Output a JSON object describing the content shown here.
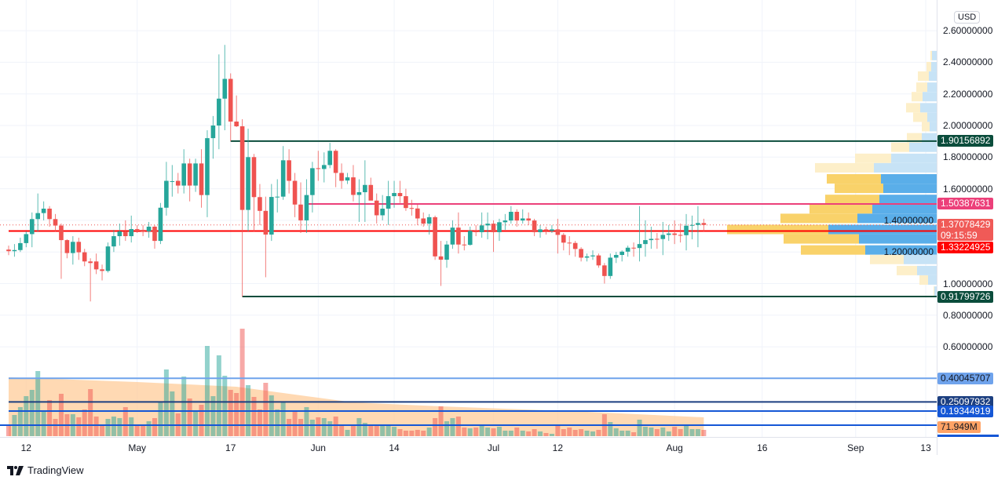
{
  "currency_button": "USD",
  "logo_text": "TradingView",
  "colors": {
    "up": "#26a69a",
    "down": "#ef5350",
    "grid": "#f0f3fa",
    "resistance": "#0b4d3c",
    "pink": "#e91e63",
    "support_red": "#ff0000",
    "vol_ma": "#ffcc99",
    "profile_up": "#5aaee9",
    "profile_down": "#f9d26a",
    "profile_up_light": "#c7e3f6",
    "profile_down_light": "#fdefc9"
  },
  "chart_data": {
    "type": "candlestick",
    "ylim": [
      0.55,
      2.68
    ],
    "grid": true,
    "price_ticks": [
      "2.60000000",
      "2.40000000",
      "2.20000000",
      "2.00000000",
      "1.80000000",
      "1.60000000",
      "1.40000000",
      "1.20000000",
      "1.00000000",
      "0.80000000",
      "0.60000000"
    ],
    "time_ticks": [
      {
        "label": "12",
        "date": "Apr 12"
      },
      {
        "label": "May",
        "date": "May 1"
      },
      {
        "label": "17",
        "date": "May 17"
      },
      {
        "label": "Jun",
        "date": "Jun 1"
      },
      {
        "label": "14",
        "date": "Jun 14"
      },
      {
        "label": "Jul",
        "date": "Jul 1"
      },
      {
        "label": "12",
        "date": "Jul 12"
      },
      {
        "label": "Aug",
        "date": "Aug 1"
      },
      {
        "label": "16",
        "date": "Aug 16"
      },
      {
        "label": "Sep",
        "date": "Sep 1"
      },
      {
        "label": "13",
        "date": "Sep 13"
      }
    ],
    "candle_columns": [
      "date",
      "open",
      "high",
      "low",
      "close",
      "volume_M"
    ],
    "candles": [
      [
        "Apr 9",
        1.215,
        1.24,
        1.18,
        1.205,
        117
      ],
      [
        "Apr 10",
        1.205,
        1.25,
        1.17,
        1.212,
        243
      ],
      [
        "Apr 11",
        1.212,
        1.29,
        1.2,
        1.256,
        333
      ],
      [
        "Apr 12",
        1.256,
        1.33,
        1.23,
        1.313,
        459
      ],
      [
        "Apr 13",
        1.313,
        1.45,
        1.23,
        1.408,
        531
      ],
      [
        "Apr 14",
        1.408,
        1.57,
        1.33,
        1.446,
        747
      ],
      [
        "Apr 15",
        1.446,
        1.52,
        1.4,
        1.474,
        288
      ],
      [
        "Apr 16",
        1.474,
        1.49,
        1.36,
        1.408,
        414
      ],
      [
        "Apr 17",
        1.408,
        1.44,
        1.33,
        1.367,
        198
      ],
      [
        "Apr 18",
        1.367,
        1.38,
        1.03,
        1.275,
        486
      ],
      [
        "Apr 19",
        1.275,
        1.28,
        1.16,
        1.193,
        252
      ],
      [
        "Apr 20",
        1.193,
        1.3,
        1.12,
        1.264,
        252
      ],
      [
        "Apr 21",
        1.264,
        1.29,
        1.15,
        1.198,
        216
      ],
      [
        "Apr 22",
        1.198,
        1.22,
        1.11,
        1.14,
        306
      ],
      [
        "Apr 23",
        1.14,
        1.16,
        0.887,
        1.13,
        540
      ],
      [
        "Apr 24",
        1.14,
        1.19,
        1.06,
        1.09,
        225
      ],
      [
        "Apr 25",
        1.09,
        1.12,
        1.02,
        1.08,
        126
      ],
      [
        "Apr 26",
        1.08,
        1.26,
        1.07,
        1.235,
        198
      ],
      [
        "Apr 27",
        1.235,
        1.34,
        1.2,
        1.3,
        225
      ],
      [
        "Apr 28",
        1.3,
        1.38,
        1.24,
        1.33,
        207
      ],
      [
        "Apr 29",
        1.33,
        1.4,
        1.27,
        1.3,
        333
      ],
      [
        "Apr 30",
        1.3,
        1.43,
        1.26,
        1.345,
        216
      ],
      [
        "May 1",
        1.345,
        1.37,
        1.32,
        1.34,
        126
      ],
      [
        "May 2",
        1.34,
        1.37,
        1.3,
        1.33,
        117
      ],
      [
        "May 3",
        1.33,
        1.39,
        1.29,
        1.36,
        171
      ],
      [
        "May 4",
        1.36,
        1.37,
        1.22,
        1.27,
        207
      ],
      [
        "May 5",
        1.27,
        1.51,
        1.25,
        1.48,
        387
      ],
      [
        "May 6",
        1.48,
        1.77,
        1.43,
        1.65,
        765
      ],
      [
        "May 7",
        1.645,
        1.75,
        1.55,
        1.648,
        513
      ],
      [
        "May 8",
        1.65,
        1.7,
        1.57,
        1.62,
        261
      ],
      [
        "May 9",
        1.62,
        1.85,
        1.57,
        1.76,
        684
      ],
      [
        "May 10",
        1.76,
        1.79,
        1.52,
        1.62,
        432
      ],
      [
        "May 11",
        1.62,
        1.79,
        1.58,
        1.76,
        297
      ],
      [
        "May 12",
        1.76,
        1.85,
        1.48,
        1.56,
        360
      ],
      [
        "May 13",
        1.56,
        1.97,
        1.42,
        1.92,
        1035
      ],
      [
        "May 14",
        1.92,
        2.06,
        1.79,
        2.0,
        459
      ],
      [
        "May 15",
        2.0,
        2.45,
        1.85,
        2.17,
        927
      ],
      [
        "May 16",
        2.17,
        2.51,
        1.97,
        2.295,
        693
      ],
      [
        "May 17",
        2.295,
        2.33,
        1.9,
        2.025,
        531
      ],
      [
        "May 18",
        2.025,
        2.19,
        1.99,
        1.995,
        495
      ],
      [
        "May 19",
        1.995,
        2.04,
        0.917,
        1.466,
        1233
      ],
      [
        "May 20",
        1.466,
        1.98,
        1.33,
        1.8,
        585
      ],
      [
        "May 21",
        1.8,
        1.82,
        1.33,
        1.547,
        450
      ],
      [
        "May 22",
        1.547,
        1.63,
        1.37,
        1.46,
        306
      ],
      [
        "May 23",
        1.46,
        1.55,
        1.04,
        1.31,
        612
      ],
      [
        "May 24",
        1.31,
        1.63,
        1.27,
        1.548,
        468
      ],
      [
        "May 25",
        1.548,
        1.66,
        1.45,
        1.55,
        306
      ],
      [
        "May 26",
        1.55,
        1.87,
        1.53,
        1.78,
        396
      ],
      [
        "May 27",
        1.78,
        1.85,
        1.57,
        1.65,
        198
      ],
      [
        "May 28",
        1.65,
        1.7,
        1.42,
        1.5,
        288
      ],
      [
        "May 29",
        1.5,
        1.64,
        1.32,
        1.4,
        198
      ],
      [
        "May 30",
        1.4,
        1.66,
        1.32,
        1.56,
        333
      ],
      [
        "May 31",
        1.56,
        1.77,
        1.45,
        1.73,
        189
      ],
      [
        "Jun 1",
        1.73,
        1.84,
        1.65,
        1.725,
        216
      ],
      [
        "Jun 2",
        1.725,
        1.83,
        1.64,
        1.75,
        207
      ],
      [
        "Jun 3",
        1.75,
        1.89,
        1.73,
        1.84,
        171
      ],
      [
        "Jun 4",
        1.84,
        1.85,
        1.61,
        1.7,
        225
      ],
      [
        "Jun 5",
        1.7,
        1.76,
        1.6,
        1.65,
        126
      ],
      [
        "Jun 6",
        1.652,
        1.7,
        1.63,
        1.672,
        72
      ],
      [
        "Jun 7",
        1.672,
        1.75,
        1.52,
        1.561,
        117
      ],
      [
        "Jun 8",
        1.561,
        1.66,
        1.39,
        1.578,
        207
      ],
      [
        "Jun 9",
        1.578,
        1.78,
        1.39,
        1.624,
        153
      ],
      [
        "Jun 10",
        1.624,
        1.67,
        1.53,
        1.525,
        126
      ],
      [
        "Jun 11",
        1.525,
        1.57,
        1.38,
        1.432,
        135
      ],
      [
        "Jun 12",
        1.432,
        1.56,
        1.4,
        1.474,
        135
      ],
      [
        "Jun 13",
        1.474,
        1.65,
        1.37,
        1.553,
        117
      ],
      [
        "Jun 14",
        1.553,
        1.65,
        1.48,
        1.573,
        108
      ],
      [
        "Jun 15",
        1.573,
        1.65,
        1.51,
        1.553,
        81
      ],
      [
        "Jun 16",
        1.553,
        1.6,
        1.46,
        1.478,
        63
      ],
      [
        "Jun 17",
        1.478,
        1.53,
        1.43,
        1.475,
        63
      ],
      [
        "Jun 18",
        1.475,
        1.5,
        1.37,
        1.412,
        72
      ],
      [
        "Jun 19",
        1.412,
        1.45,
        1.36,
        1.379,
        63
      ],
      [
        "Jun 20",
        1.379,
        1.44,
        1.31,
        1.42,
        99
      ],
      [
        "Jun 21",
        1.42,
        1.43,
        1.15,
        1.172,
        207
      ],
      [
        "Jun 22",
        1.172,
        1.27,
        0.985,
        1.151,
        342
      ],
      [
        "Jun 23",
        1.151,
        1.27,
        1.1,
        1.247,
        171
      ],
      [
        "Jun 24",
        1.247,
        1.4,
        1.22,
        1.354,
        207
      ],
      [
        "Jun 25",
        1.354,
        1.45,
        1.19,
        1.247,
        225
      ],
      [
        "Jun 26",
        1.247,
        1.3,
        1.21,
        1.245,
        99
      ],
      [
        "Jun 27",
        1.245,
        1.36,
        1.24,
        1.333,
        90
      ],
      [
        "Jun 28",
        1.333,
        1.37,
        1.3,
        1.325,
        99
      ],
      [
        "Jun 29",
        1.325,
        1.45,
        1.29,
        1.368,
        117
      ],
      [
        "Jun 30",
        1.368,
        1.45,
        1.28,
        1.379,
        99
      ],
      [
        "Jul 1",
        1.379,
        1.4,
        1.2,
        1.325,
        90
      ],
      [
        "Jul 2",
        1.325,
        1.41,
        1.27,
        1.388,
        108
      ],
      [
        "Jul 3",
        1.388,
        1.44,
        1.34,
        1.399,
        63
      ],
      [
        "Jul 4",
        1.399,
        1.49,
        1.38,
        1.454,
        63
      ],
      [
        "Jul 5",
        1.454,
        1.47,
        1.36,
        1.399,
        99
      ],
      [
        "Jul 6",
        1.399,
        1.47,
        1.38,
        1.412,
        63
      ],
      [
        "Jul 7",
        1.412,
        1.45,
        1.37,
        1.399,
        54
      ],
      [
        "Jul 8",
        1.399,
        1.41,
        1.3,
        1.325,
        81
      ],
      [
        "Jul 9",
        1.325,
        1.37,
        1.29,
        1.343,
        54
      ],
      [
        "Jul 10",
        1.343,
        1.36,
        1.31,
        1.333,
        36
      ],
      [
        "Jul 11",
        1.333,
        1.37,
        1.32,
        1.343,
        27
      ],
      [
        "Jul 12",
        1.343,
        1.41,
        1.19,
        1.308,
        126
      ],
      [
        "Jul 13",
        1.308,
        1.32,
        1.21,
        1.259,
        81
      ],
      [
        "Jul 14",
        1.259,
        1.3,
        1.18,
        1.257,
        99
      ],
      [
        "Jul 15",
        1.257,
        1.27,
        1.17,
        1.219,
        72
      ],
      [
        "Jul 16",
        1.219,
        1.23,
        1.14,
        1.164,
        81
      ],
      [
        "Jul 17",
        1.164,
        1.19,
        1.14,
        1.172,
        63
      ],
      [
        "Jul 18",
        1.172,
        1.21,
        1.15,
        1.178,
        54
      ],
      [
        "Jul 19",
        1.178,
        1.19,
        1.1,
        1.115,
        72
      ],
      [
        "Jul 20",
        1.115,
        1.13,
        1.0,
        1.048,
        252
      ],
      [
        "Jul 21",
        1.048,
        1.19,
        1.03,
        1.164,
        162
      ],
      [
        "Jul 22",
        1.164,
        1.2,
        1.13,
        1.181,
        90
      ],
      [
        "Jul 23",
        1.181,
        1.21,
        1.14,
        1.202,
        63
      ],
      [
        "Jul 24",
        1.202,
        1.24,
        1.17,
        1.227,
        63
      ],
      [
        "Jul 25",
        1.227,
        1.26,
        1.17,
        1.225,
        45
      ],
      [
        "Jul 26",
        1.225,
        1.49,
        1.14,
        1.25,
        189
      ],
      [
        "Jul 27",
        1.25,
        1.4,
        1.17,
        1.275,
        108
      ],
      [
        "Jul 28",
        1.275,
        1.36,
        1.22,
        1.283,
        99
      ],
      [
        "Jul 29",
        1.283,
        1.32,
        1.22,
        1.282,
        81
      ],
      [
        "Jul 30",
        1.282,
        1.39,
        1.18,
        1.308,
        99
      ],
      [
        "Jul 31",
        1.308,
        1.37,
        1.27,
        1.317,
        54
      ],
      [
        "Aug 1",
        1.317,
        1.4,
        1.25,
        1.308,
        108
      ],
      [
        "Aug 2",
        1.308,
        1.38,
        1.26,
        1.306,
        81
      ],
      [
        "Aug 3",
        1.306,
        1.44,
        1.21,
        1.366,
        117
      ],
      [
        "Aug 4",
        1.366,
        1.43,
        1.28,
        1.371,
        81
      ],
      [
        "Aug 5",
        1.371,
        1.49,
        1.23,
        1.383,
        81
      ],
      [
        "Aug 6",
        1.383,
        1.41,
        1.33,
        1.371,
        71.949
      ]
    ],
    "volume_ma": [
      [
        "Apr 9",
        675
      ],
      [
        "May 1",
        621
      ],
      [
        "May 18",
        567
      ],
      [
        "Jun 7",
        387
      ],
      [
        "Jun 22",
        342
      ],
      [
        "Jul 17",
        279
      ],
      [
        "Aug 6",
        216
      ]
    ],
    "volume_profile": {
      "columns": [
        "price",
        "up_volume",
        "down_volume",
        "in_value_area"
      ],
      "rows": [
        [
          2.44,
          6,
          2,
          false
        ],
        [
          2.37,
          7,
          6,
          false
        ],
        [
          2.31,
          10,
          14,
          false
        ],
        [
          2.24,
          12,
          14,
          false
        ],
        [
          2.18,
          18,
          14,
          false
        ],
        [
          2.11,
          21,
          18,
          false
        ],
        [
          2.05,
          12,
          18,
          false
        ],
        [
          1.99,
          9,
          10,
          false
        ],
        [
          1.92,
          19,
          19,
          false
        ],
        [
          1.86,
          35,
          23,
          false
        ],
        [
          1.79,
          58,
          46,
          false
        ],
        [
          1.73,
          80,
          75,
          false
        ],
        [
          1.66,
          71,
          69,
          true
        ],
        [
          1.6,
          68,
          62,
          true
        ],
        [
          1.53,
          73,
          69,
          true
        ],
        [
          1.47,
          82,
          80,
          true
        ],
        [
          1.41,
          101,
          98,
          true
        ],
        [
          1.34,
          138,
          129,
          true
        ],
        [
          1.28,
          99,
          96,
          true
        ],
        [
          1.21,
          91,
          82,
          true
        ],
        [
          1.15,
          42,
          43,
          false
        ],
        [
          1.08,
          25,
          26,
          false
        ],
        [
          1.02,
          11,
          11,
          false
        ],
        [
          0.95,
          3,
          1,
          false
        ]
      ]
    },
    "levels": [
      {
        "value": "1.90156892",
        "price": 1.90156892,
        "from": "May 17",
        "color": "#0b4d3c",
        "text": "#ffffff"
      },
      {
        "value": "1.50387631",
        "price": 1.50387631,
        "from": "May 30",
        "color": "#ec407a",
        "text": "#ffffff"
      },
      {
        "value": "1.33224925",
        "price": 1.33224925,
        "from": "Apr 9",
        "color": "#ff0000",
        "text": "#ffffff"
      },
      {
        "value": "0.91799726",
        "price": 0.91799726,
        "from": "May 19",
        "color": "#0b4d3c",
        "text": "#ffffff"
      },
      {
        "value": "0.40045707",
        "price": 0.40045707,
        "from": "Apr 9",
        "color": "#6fa3ec",
        "text": "#131722"
      },
      {
        "value": "0.25097932",
        "price": 0.25097932,
        "from": "Apr 9",
        "color": "#1c3f80",
        "text": "#ffffff"
      },
      {
        "value": "0.19344919",
        "price": 0.19344919,
        "from": "Apr 9",
        "color": "#1557d6",
        "text": "#ffffff"
      }
    ],
    "current_price": {
      "value": "1.37078429",
      "price": 1.37078429,
      "countdown": "09:15:59",
      "color": "#f05a57"
    },
    "last_volume": {
      "value": "71.949M",
      "color": "#ffa366"
    }
  }
}
